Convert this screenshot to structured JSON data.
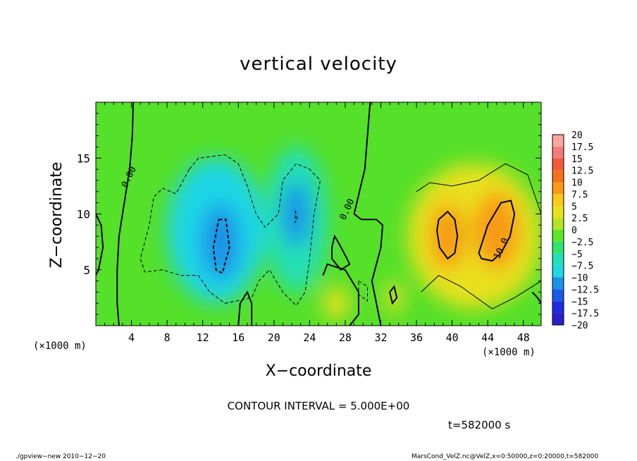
{
  "chart_data": {
    "type": "heatmap",
    "title": "vertical velocity",
    "xlabel": "X−coordinate",
    "ylabel": "Z−coordinate",
    "x_unit_left": "(×1000 m)",
    "x_unit_right": "(×1000 m)",
    "xlim": [
      0,
      50
    ],
    "ylim": [
      0,
      20
    ],
    "x_ticks": [
      {
        "value": 4,
        "label": "4"
      },
      {
        "value": 8,
        "label": "8"
      },
      {
        "value": 12,
        "label": "12"
      },
      {
        "value": 16,
        "label": "16"
      },
      {
        "value": 20,
        "label": "20"
      },
      {
        "value": 24,
        "label": "24"
      },
      {
        "value": 28,
        "label": "28"
      },
      {
        "value": 32,
        "label": "32"
      },
      {
        "value": 36,
        "label": "36"
      },
      {
        "value": 40,
        "label": "40"
      },
      {
        "value": 44,
        "label": "44"
      },
      {
        "value": 48,
        "label": "48"
      }
    ],
    "y_ticks": [
      {
        "value": 5,
        "label": "5"
      },
      {
        "value": 10,
        "label": "10"
      },
      {
        "value": 15,
        "label": "15"
      }
    ],
    "colorbar": {
      "levels": [
        "20",
        "17.5",
        "15",
        "12.5",
        "10",
        "7.5",
        "5",
        "2.5",
        "0",
        "−2.5",
        "−5",
        "−7.5",
        "−10",
        "−12.5",
        "−15",
        "−17.5",
        "−20"
      ],
      "colors": [
        "#f7a6a0",
        "#f47b7b",
        "#f25a3a",
        "#f5731d",
        "#f79a18",
        "#f8c81a",
        "#e9e11c",
        "#b4e525",
        "#5ee52c",
        "#2ee36a",
        "#22e0b7",
        "#1fd6e6",
        "#1a92e9",
        "#1a5ae7",
        "#1c2ee0",
        "#2c1fc7",
        "#6b1fb0"
      ]
    },
    "regions": [
      {
        "x": 14,
        "z": 7.5,
        "value": -11,
        "rx": 2.2,
        "rz": 3.4
      },
      {
        "x": 13.5,
        "z": 8.5,
        "value": -7.5,
        "rx": 5.5,
        "rz": 6.5
      },
      {
        "x": 22.5,
        "z": 10,
        "value": -9,
        "rx": 1.6,
        "rz": 3
      },
      {
        "x": 22.5,
        "z": 9.5,
        "value": -6,
        "rx": 3.5,
        "rz": 6.5
      },
      {
        "x": 39.5,
        "z": 8,
        "value": 11,
        "rx": 2,
        "rz": 3
      },
      {
        "x": 45,
        "z": 8.5,
        "value": 11,
        "rx": 2.6,
        "rz": 3.5
      },
      {
        "x": 42.5,
        "z": 8,
        "value": 6,
        "rx": 7.5,
        "rz": 6.5
      },
      {
        "x": 27,
        "z": 2,
        "value": 5,
        "rx": 1.5,
        "rz": 1.5
      },
      {
        "x": 33.5,
        "z": 2.5,
        "value": 6,
        "rx": 1,
        "rz": 1.5
      }
    ],
    "contour_labels": [
      {
        "x": 4,
        "z": 13.2,
        "text": "0.00"
      },
      {
        "x": 28.5,
        "z": 10.3,
        "text": "0.00"
      },
      {
        "x": 45.8,
        "z": 6.8,
        "text": "10.0"
      }
    ],
    "contour_interval_text": "CONTOUR INTERVAL = 5.000E+00",
    "time_text": "t=582000 s"
  },
  "footer": {
    "left": "./gpview−new  2010−12−20",
    "right": "MarsCond_VelZ.nc@VelZ,x=0:50000,z=0:20000,t=582000"
  }
}
